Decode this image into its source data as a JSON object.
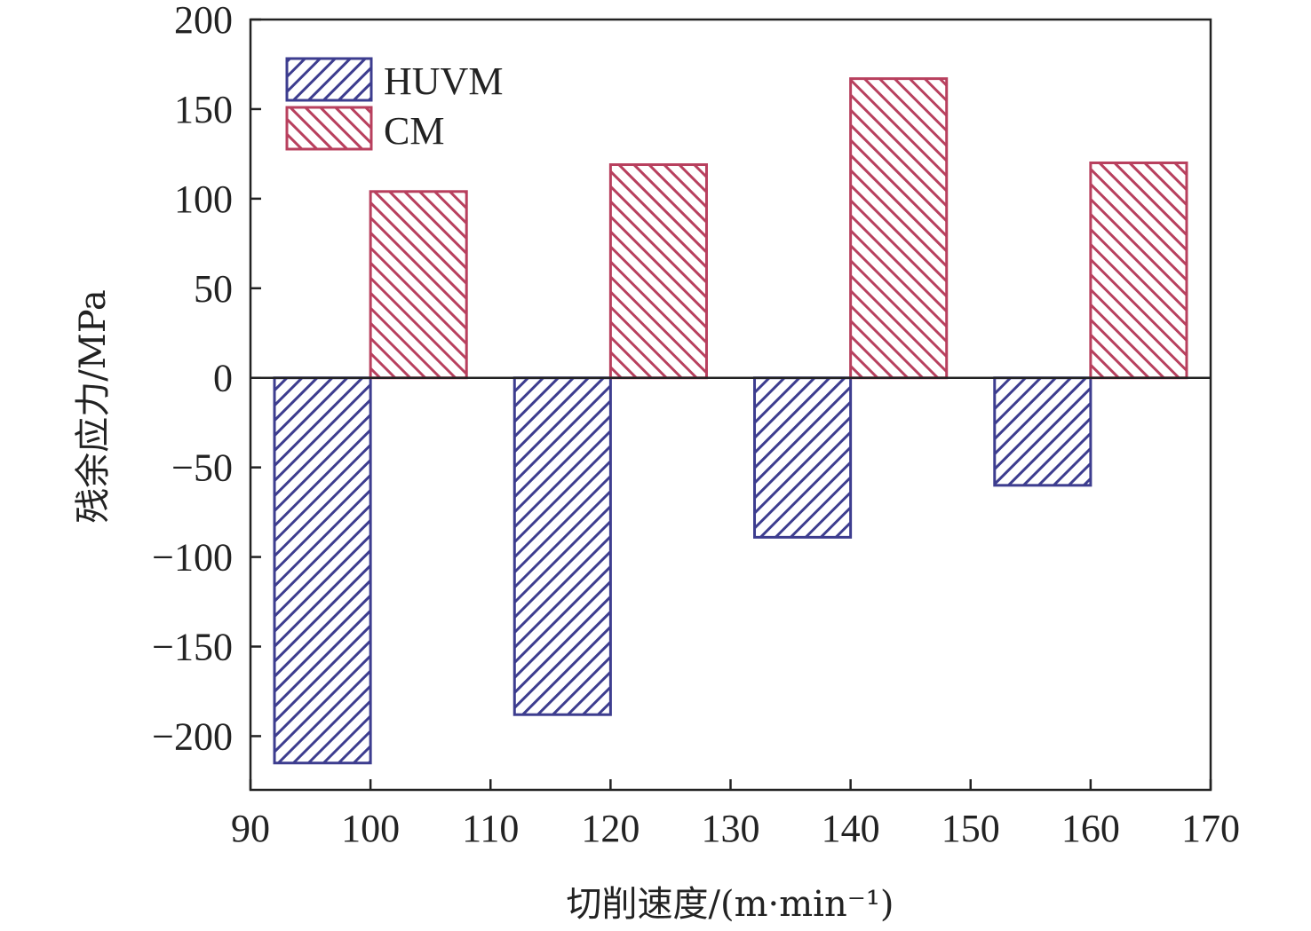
{
  "chart_data": {
    "type": "bar",
    "xlabel": "切削速度/(m·min⁻¹)",
    "ylabel": "残余应力/MPa",
    "xlim": [
      90,
      170
    ],
    "ylim": [
      -230,
      200
    ],
    "x_ticks": [
      "90",
      "100",
      "110",
      "120",
      "130",
      "140",
      "150",
      "160",
      "170"
    ],
    "y_ticks": [
      "200",
      "150",
      "100",
      "50",
      "0",
      "−50",
      "−100",
      "−150",
      "−200"
    ],
    "categories": [
      100,
      120,
      140,
      160
    ],
    "series": [
      {
        "name": "HUVM",
        "color": "#3d3d8f",
        "values": [
          -215,
          -188,
          -89,
          -60
        ]
      },
      {
        "name": "CM",
        "color": "#b8405e",
        "values": [
          104,
          119,
          167,
          120
        ]
      }
    ],
    "legend_position": "top-left",
    "grid": false
  }
}
